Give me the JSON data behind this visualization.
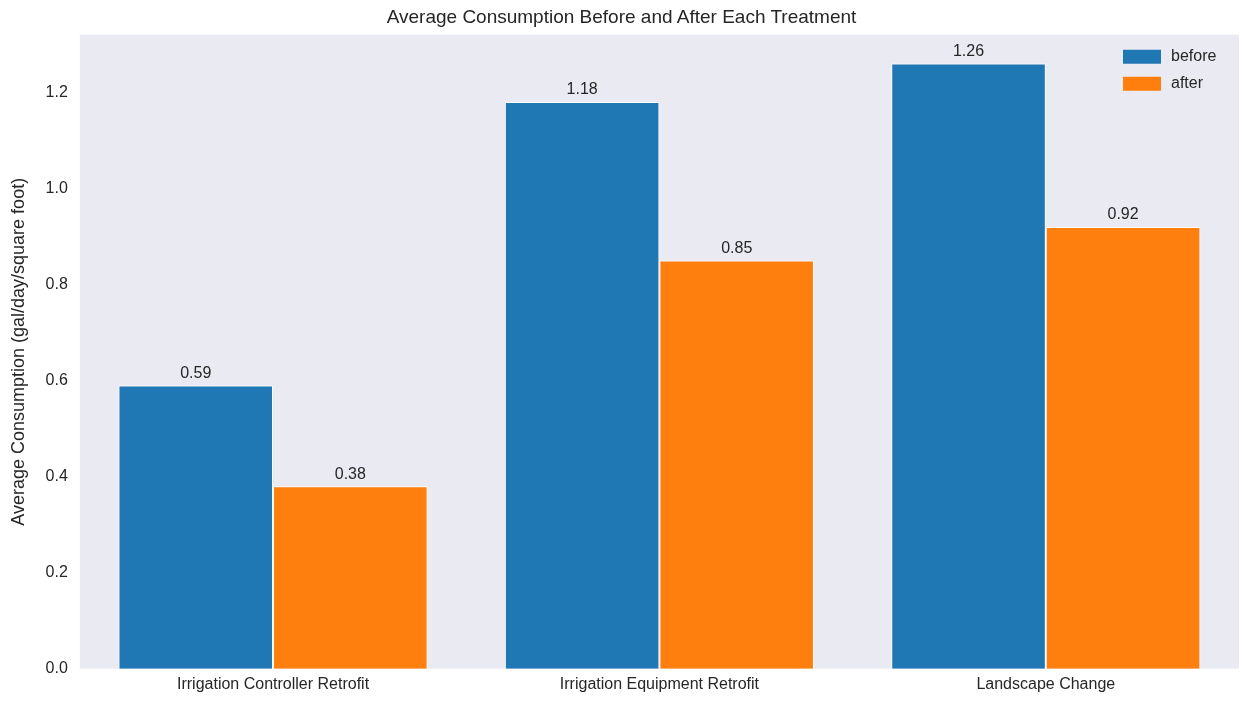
{
  "chart_data": {
    "type": "bar",
    "title": "Average Consumption Before and After Each Treatment",
    "ylabel": "Average Consumption (gal/day/square foot)",
    "categories": [
      "Irrigation Controller Retrofit",
      "Irrigation Equipment Retrofit",
      "Landscape Change"
    ],
    "series": [
      {
        "name": "before",
        "color": "#1f77b4",
        "values": [
          0.59,
          1.18,
          1.26
        ]
      },
      {
        "name": "after",
        "color": "#ff7f0e",
        "values": [
          0.38,
          0.85,
          0.92
        ]
      }
    ],
    "ylim": [
      0,
      1.32
    ],
    "yticks": [
      {
        "value": 0,
        "label": "0.0"
      },
      0.2,
      0.4,
      0.6,
      0.8,
      {
        "value": 1,
        "label": "1.0"
      },
      1.2
    ],
    "data_labels": true,
    "legend": "top right"
  }
}
